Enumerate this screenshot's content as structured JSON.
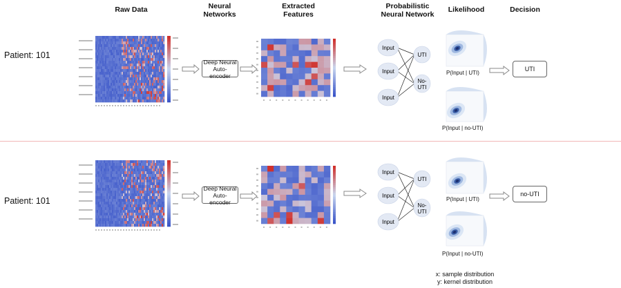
{
  "headers": {
    "raw": "Raw Data",
    "nn_line1": "Neural",
    "nn_line2": "Networks",
    "feat_line1": "Extracted",
    "feat_line2": "Features",
    "pnn_line1": "Probabilistic",
    "pnn_line2": "Neural Network",
    "likelihood": "Likelihood",
    "decision": "Decision"
  },
  "rows": [
    {
      "patient": "Patient: 101",
      "ae_line1": "Deep Neural",
      "ae_line2": "Auto-encoder",
      "inputs": [
        "Input",
        "Input",
        "Input"
      ],
      "out_uti": "UTI",
      "out_nouti_line1": "No-",
      "out_nouti_line2": "UTI",
      "lik_uti": "P(Input | UTI)",
      "lik_nouti": "P(Input | no-UTI)",
      "decision": "UTI"
    },
    {
      "patient": "Patient: 101",
      "ae_line1": "Deep Neural",
      "ae_line2": "Auto-encoder",
      "inputs": [
        "Input",
        "Input",
        "Input"
      ],
      "out_uti": "UTI",
      "out_nouti_line1": "No-",
      "out_nouti_line2": "UTI",
      "lik_uti": "P(Input | UTI)",
      "lik_nouti": "P(Input | no-UTI)",
      "decision": "no-UTI"
    }
  ],
  "legend": {
    "x": "x: sample distribution",
    "y": "y: kernel distribution"
  },
  "colors": {
    "heat_low": "#3a55c8",
    "heat_mid": "#c9d6ef",
    "heat_high": "#d0302b",
    "node_fill": "#e3e9f4",
    "divider": "#f2b6b6"
  }
}
